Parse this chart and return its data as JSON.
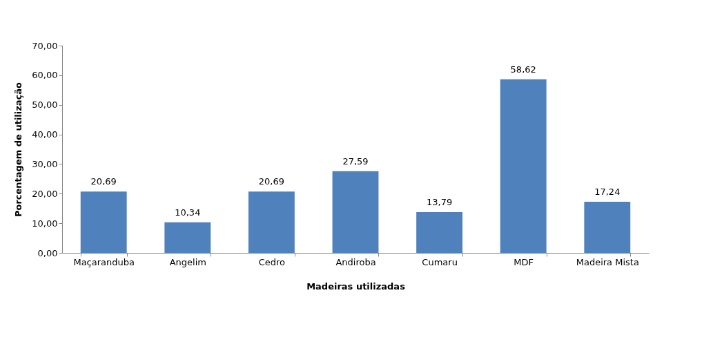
{
  "chart_data": {
    "type": "bar",
    "xlabel": "Madeiras  utilizadas",
    "ylabel": "Porcentagem de utilização",
    "categories": [
      "Maçaranduba",
      "Angelim",
      "Cedro",
      "Andiroba",
      "Cumaru",
      "MDF",
      "Madeira Mista"
    ],
    "values": [
      20.69,
      10.34,
      20.69,
      27.59,
      13.79,
      58.62,
      17.24
    ],
    "value_labels": [
      "20,69",
      "10,34",
      "20,69",
      "27,59",
      "13,79",
      "58,62",
      "17,24"
    ],
    "color": "#4f81bd",
    "ylim": [
      0,
      70
    ],
    "yticks": [
      {
        "value": 0,
        "label": "0,00"
      },
      {
        "value": 10,
        "label": "10,00"
      },
      {
        "value": 20,
        "label": "20,00"
      },
      {
        "value": 30,
        "label": "30,00"
      },
      {
        "value": 40,
        "label": "40,00"
      },
      {
        "value": 50,
        "label": "50,00"
      },
      {
        "value": 60,
        "label": "60,00"
      },
      {
        "value": 70,
        "label": "70,00"
      }
    ],
    "grid": false
  }
}
